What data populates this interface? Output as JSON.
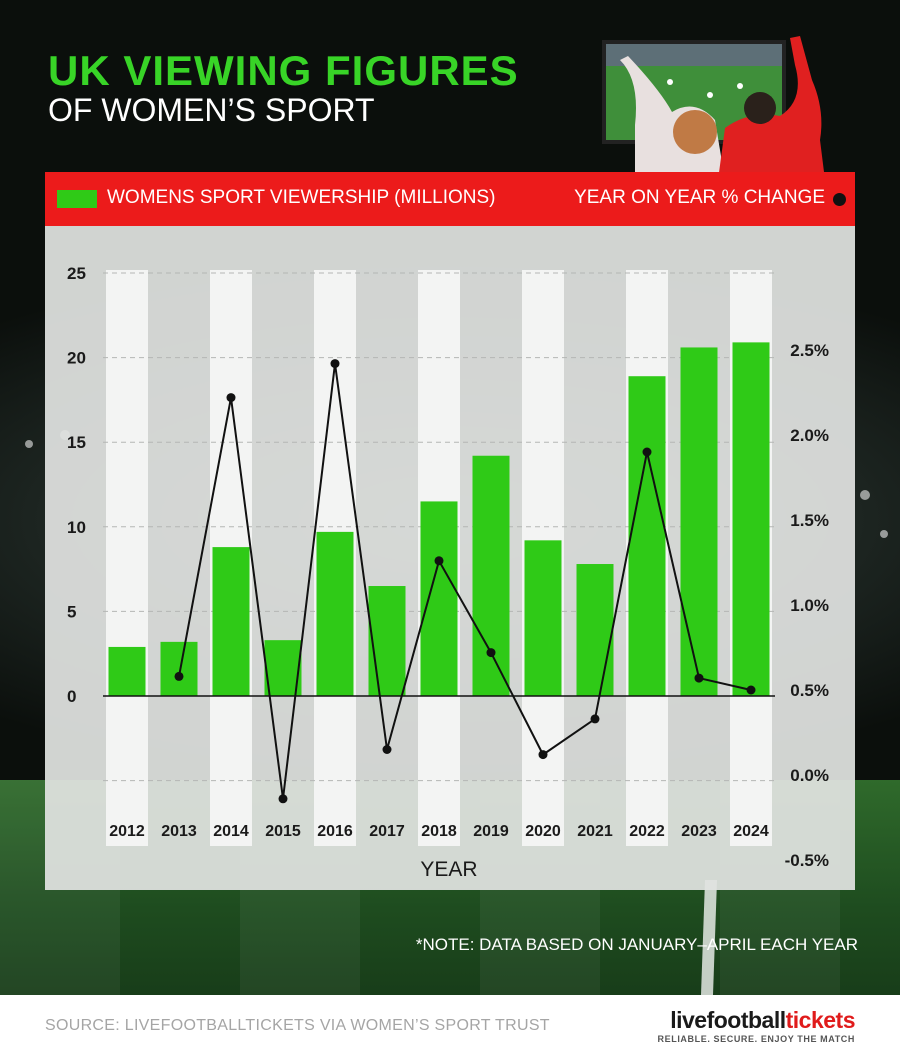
{
  "header": {
    "title_line1": "UK VIEWING FIGURES",
    "title_line2": "OF WOMEN’S SPORT"
  },
  "legend": {
    "bars_label": "WOMENS SPORT VIEWERSHIP (MILLIONS)",
    "line_label": "YEAR ON YEAR % CHANGE"
  },
  "colors": {
    "bar": "#2fca17",
    "line": "#111111",
    "accent_red": "#ec1b1b",
    "title_green": "#38d427"
  },
  "chart_data": {
    "type": "bar",
    "categories": [
      "2012",
      "2013",
      "2014",
      "2015",
      "2016",
      "2017",
      "2018",
      "2019",
      "2020",
      "2021",
      "2022",
      "2023",
      "2024"
    ],
    "series": [
      {
        "name": "WOMENS SPORT VIEWERSHIP (MILLIONS)",
        "type": "bar",
        "axis": "left",
        "values": [
          2.9,
          3.2,
          8.8,
          3.3,
          9.7,
          6.5,
          11.5,
          14.2,
          9.2,
          7.8,
          18.9,
          20.6,
          20.9
        ]
      },
      {
        "name": "YEAR ON YEAR % CHANGE",
        "type": "line",
        "axis": "right",
        "values": [
          null,
          0.58,
          2.22,
          -0.14,
          2.42,
          0.15,
          1.26,
          0.72,
          0.12,
          0.33,
          1.9,
          0.57,
          0.5
        ]
      }
    ],
    "left_axis": {
      "ticks": [
        "25",
        "20",
        "15",
        "10",
        "5",
        "0"
      ],
      "tick_values": [
        25,
        20,
        15,
        10,
        5,
        0
      ],
      "range": [
        -5,
        25
      ]
    },
    "right_axis": {
      "ticks": [
        "2.5%",
        "2.0%",
        "1.5%",
        "1.0%",
        "0.5%",
        "0.0%",
        "-0.5%"
      ],
      "tick_values": [
        2.5,
        2.0,
        1.5,
        1.0,
        0.5,
        0.0,
        -0.5
      ]
    },
    "xlabel": "YEAR",
    "grid": true,
    "legend_position": "top"
  },
  "note": "*NOTE: DATA BASED ON JANUARY–APRIL EACH YEAR",
  "footer": {
    "source": "SOURCE: LIVEFOOTBALLTICKETS VIA WOMEN’S SPORT TRUST",
    "brand_part1": "live",
    "brand_part2": "football",
    "brand_part3": "tickets",
    "brand_tagline": "RELIABLE. SECURE. ENJOY THE MATCH"
  }
}
